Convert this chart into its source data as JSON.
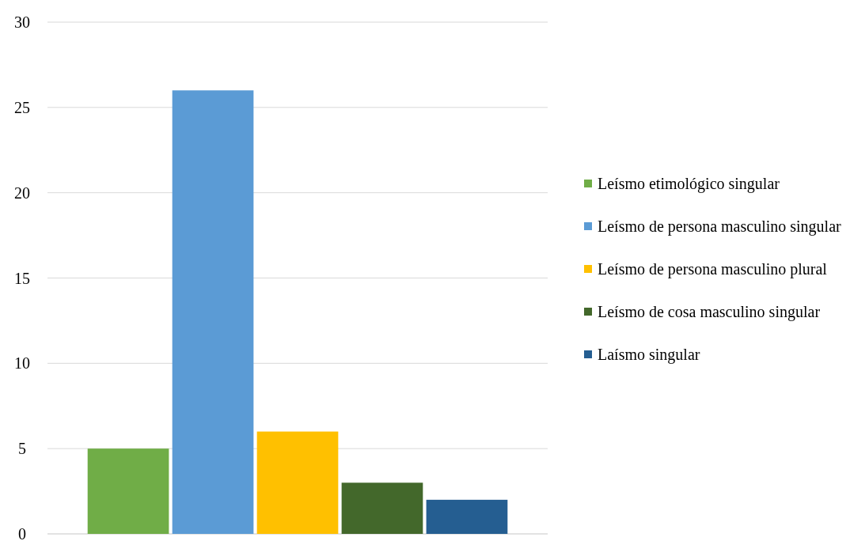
{
  "chart_data": {
    "type": "bar",
    "categories": [
      null
    ],
    "ylim": [
      0,
      30
    ],
    "yticks": [
      0,
      5,
      10,
      15,
      20,
      25,
      30
    ],
    "grid": "y",
    "legend": "right",
    "series": [
      {
        "name": "Leísmo etimológico singular",
        "color": "#70ad47",
        "values": [
          5
        ]
      },
      {
        "name": "Leísmo de persona masculino singular",
        "color": "#5b9bd5",
        "values": [
          26
        ]
      },
      {
        "name": "Leísmo de persona masculino plural",
        "color": "#ffc000",
        "values": [
          6
        ]
      },
      {
        "name": "Leísmo de cosa masculino singular",
        "color": "#43682b",
        "values": [
          3
        ]
      },
      {
        "name": "Laísmo singular",
        "color": "#255e91",
        "values": [
          2
        ]
      }
    ]
  }
}
